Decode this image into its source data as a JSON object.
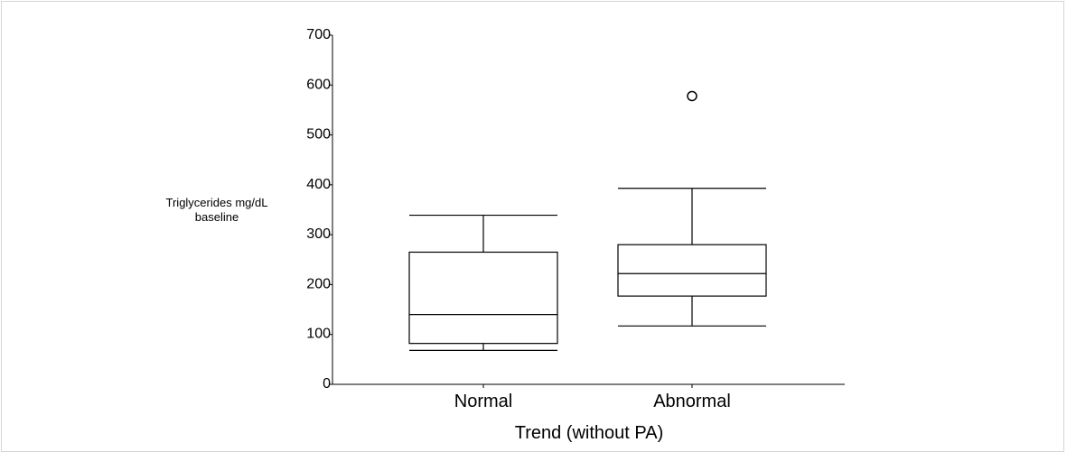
{
  "chart_data": {
    "type": "boxplot",
    "ylabel": [
      "Triglycerides mg/dL",
      "baseline"
    ],
    "xlabel": "Trend (without PA)",
    "ylim": [
      0,
      700
    ],
    "yticks": [
      0,
      100,
      200,
      300,
      400,
      500,
      600,
      700
    ],
    "categories": [
      "Normal",
      "Abnormal"
    ],
    "boxes": [
      {
        "category": "Normal",
        "whisker_low": 68,
        "q1": 82,
        "median": 140,
        "q3": 265,
        "whisker_high": 339,
        "outliers": []
      },
      {
        "category": "Abnormal",
        "whisker_low": 117,
        "q1": 177,
        "median": 222,
        "q3": 280,
        "whisker_high": 393,
        "outliers": [
          578
        ]
      }
    ],
    "grid": false,
    "legend": "none"
  }
}
